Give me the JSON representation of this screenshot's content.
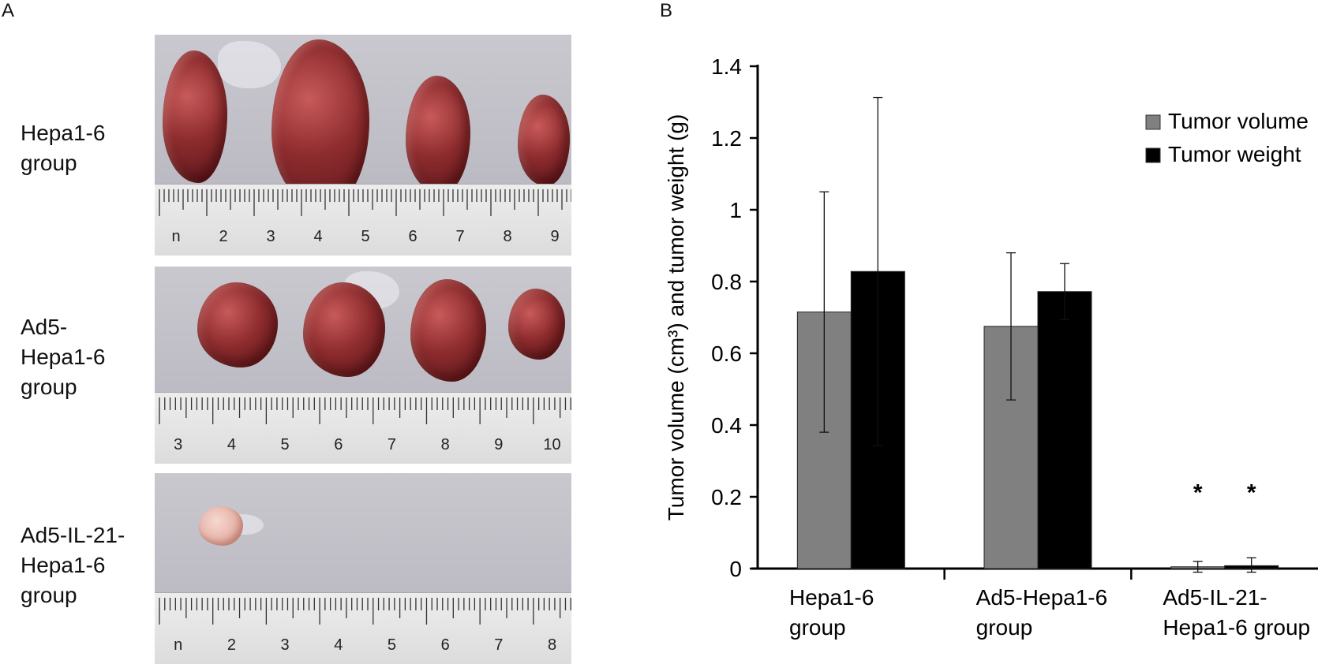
{
  "panels": {
    "a_letter": "A",
    "b_letter": "B"
  },
  "photo_rows": [
    {
      "label": "Hepa1-6\ngroup",
      "ruler_numbers": [
        "n",
        "2",
        "3",
        "4",
        "5",
        "6",
        "7",
        "8",
        "9"
      ]
    },
    {
      "label": "Ad5-\nHepa1-6\ngroup",
      "ruler_numbers": [
        "3",
        "4",
        "5",
        "6",
        "7",
        "8",
        "9",
        "10"
      ]
    },
    {
      "label": "Ad5-IL-21-\nHepa1-6\ngroup",
      "ruler_numbers": [
        "n",
        "2",
        "3",
        "4",
        "5",
        "6",
        "7",
        "8"
      ]
    }
  ],
  "colors": {
    "volume": "#808080",
    "weight": "#000000",
    "axis": "#000000"
  },
  "chart_data": {
    "type": "bar",
    "categories": [
      "Hepa1-6\ngroup",
      "Ad5-Hepa1-6\ngroup",
      "Ad5-IL-21-\nHepa1-6 group"
    ],
    "series": [
      {
        "name": "Tumor volume",
        "values": [
          0.715,
          0.675,
          0.005
        ],
        "errors": [
          0.335,
          0.205,
          0.015
        ]
      },
      {
        "name": "Tumor weight",
        "values": [
          0.828,
          0.772,
          0.008
        ],
        "errors": [
          0.485,
          0.078,
          0.022
        ]
      }
    ],
    "annotations": [
      "*",
      "*"
    ],
    "ylabel": "Tumor volume (cm³) and tumor weight (g)",
    "xlabel": "",
    "ylim": [
      0,
      1.4
    ],
    "yticks": [
      "0",
      "0.2",
      "0.4",
      "0.6",
      "0.8",
      "1",
      "1.2",
      "1.4"
    ],
    "grid": false,
    "legend": "top-right"
  }
}
